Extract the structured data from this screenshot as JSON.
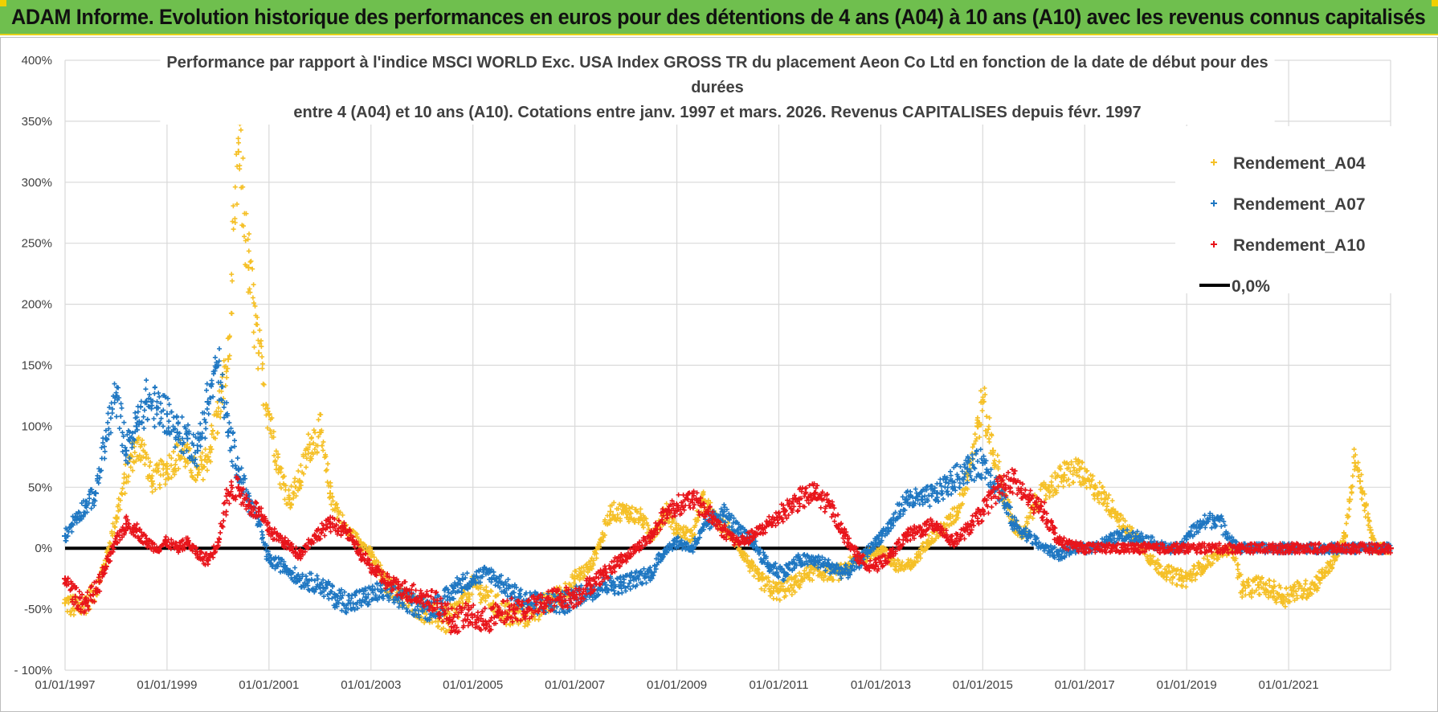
{
  "banner": {
    "title": "ADAM Informe. Evolution historique des performances en euros pour des détentions de 4 ans (A04) à 10 ans (A10) avec les revenus connus capitalisés"
  },
  "chart_data": {
    "type": "scatter",
    "title_lines": [
      "Performance par rapport à l'indice MSCI WORLD Exc. USA Index GROSS TR  du placement Aeon Co Ltd en fonction de la date de début pour des",
      "durées",
      "entre 4 (A04) et 10 ans (A10).  Cotations entre janv. 1997 et mars. 2026.  Revenus CAPITALISES depuis févr. 1997"
    ],
    "xlabel": "",
    "ylabel": "",
    "xlim": [
      1997.0,
      2023.0
    ],
    "ylim": [
      -100,
      400
    ],
    "y_ticks": [
      -100,
      -50,
      0,
      50,
      100,
      150,
      200,
      250,
      300,
      350,
      400
    ],
    "y_tick_labels": [
      "- 100%",
      "-50%",
      "0%",
      "50%",
      "100%",
      "150%",
      "200%",
      "250%",
      "300%",
      "350%",
      "400%"
    ],
    "x_ticks": [
      1997,
      1999,
      2001,
      2003,
      2005,
      2007,
      2009,
      2011,
      2013,
      2015,
      2017,
      2019,
      2021
    ],
    "x_tick_labels": [
      "01/01/1997",
      "01/01/1999",
      "01/01/2001",
      "01/01/2003",
      "01/01/2005",
      "01/01/2007",
      "01/01/2009",
      "01/01/2011",
      "01/01/2013",
      "01/01/2015",
      "01/01/2017",
      "01/01/2019",
      "01/01/2021"
    ],
    "grid": true,
    "legend_position": "top-right",
    "marker": "+",
    "series": [
      {
        "name": "Rendement_A04",
        "color": "#f5c027",
        "x": [
          1997.0,
          1997.3,
          1997.6,
          1997.8,
          1998.0,
          1998.3,
          1998.5,
          1998.7,
          1999.0,
          1999.3,
          1999.6,
          1999.8,
          2000.0,
          2000.2,
          2000.4,
          2000.6,
          2000.8,
          2001.0,
          2001.2,
          2001.4,
          2001.6,
          2001.8,
          2002.0,
          2002.2,
          2002.5,
          2002.8,
          2003.0,
          2003.3,
          2003.6,
          2004.0,
          2004.5,
          2004.8,
          2005.0,
          2005.4,
          2005.7,
          2006.0,
          2006.5,
          2006.8,
          2007.0,
          2007.3,
          2007.5,
          2007.7,
          2008.0,
          2008.3,
          2008.5,
          2008.8,
          2009.0,
          2009.3,
          2009.5,
          2009.8,
          2010.0,
          2010.3,
          2010.6,
          2010.9,
          2011.0,
          2011.3,
          2011.6,
          2011.9,
          2012.2,
          2012.5,
          2012.8,
          2013.0,
          2013.3,
          2013.6,
          2013.9,
          2014.2,
          2014.5,
          2014.7,
          2014.9,
          2015.0,
          2015.2,
          2015.4,
          2015.6,
          2015.8,
          2016.0,
          2016.3,
          2016.6,
          2016.9,
          2017.0,
          2017.2,
          2017.4,
          2017.6,
          2017.8,
          2018.0,
          2018.3,
          2018.6,
          2018.9,
          2019.0,
          2019.3,
          2019.6,
          2019.9,
          2020.1,
          2020.4,
          2020.7,
          2020.9,
          2021.1,
          2021.3,
          2021.5,
          2021.7,
          2021.9,
          2022.0,
          2022.1,
          2022.2,
          2022.3,
          2022.4,
          2022.5,
          2022.6,
          2022.7,
          2022.8,
          2022.9,
          2023.0
        ],
        "y": [
          -45,
          -50,
          -35,
          -10,
          25,
          75,
          85,
          55,
          65,
          80,
          60,
          75,
          110,
          155,
          325,
          230,
          160,
          110,
          65,
          40,
          55,
          85,
          95,
          45,
          15,
          5,
          -5,
          -30,
          -40,
          -50,
          -60,
          -45,
          -30,
          -45,
          -55,
          -55,
          -45,
          -35,
          -25,
          -15,
          5,
          30,
          30,
          25,
          10,
          30,
          15,
          10,
          40,
          20,
          15,
          -5,
          -25,
          -35,
          -35,
          -30,
          -20,
          -20,
          -20,
          -10,
          -5,
          0,
          -15,
          -15,
          5,
          15,
          30,
          60,
          100,
          120,
          80,
          45,
          20,
          10,
          35,
          50,
          60,
          65,
          55,
          50,
          40,
          30,
          15,
          10,
          -10,
          -20,
          -25,
          -25,
          -15,
          -5,
          0,
          -35,
          -30,
          -35,
          -40,
          -35,
          -35,
          -30,
          -20,
          -10,
          0,
          10,
          40,
          70,
          55,
          35,
          15,
          0,
          0,
          0,
          0
        ]
      },
      {
        "name": "Rendement_A07",
        "color": "#1f77c2",
        "x": [
          1997.0,
          1997.2,
          1997.4,
          1997.6,
          1997.8,
          1998.0,
          1998.2,
          1998.4,
          1998.6,
          1998.8,
          1999.0,
          1999.2,
          1999.4,
          1999.6,
          1999.8,
          2000.0,
          2000.2,
          2000.4,
          2000.6,
          2000.8,
          2001.0,
          2001.3,
          2001.6,
          2002.0,
          2002.3,
          2002.6,
          2002.9,
          2003.2,
          2003.5,
          2003.8,
          2004.1,
          2004.4,
          2004.7,
          2005.0,
          2005.3,
          2005.6,
          2005.9,
          2006.2,
          2006.5,
          2006.8,
          2007.0,
          2007.3,
          2007.6,
          2007.9,
          2008.2,
          2008.5,
          2008.8,
          2009.0,
          2009.3,
          2009.6,
          2009.9,
          2010.2,
          2010.5,
          2010.8,
          2011.1,
          2011.4,
          2011.7,
          2012.0,
          2012.3,
          2012.6,
          2012.9,
          2013.2,
          2013.5,
          2013.8,
          2014.1,
          2014.4,
          2014.7,
          2015.0,
          2015.3,
          2015.6,
          2015.9,
          2016.2,
          2016.5,
          2016.8,
          2017.1,
          2017.4,
          2017.7,
          2018.0,
          2018.3,
          2018.6,
          2018.9,
          2019.0,
          2019.3,
          2019.6,
          2019.9,
          2020.0,
          2021.0,
          2022.0,
          2023.0
        ],
        "y": [
          10,
          25,
          35,
          45,
          90,
          125,
          80,
          100,
          120,
          115,
          110,
          95,
          90,
          80,
          120,
          150,
          95,
          65,
          40,
          20,
          -10,
          -15,
          -25,
          -30,
          -40,
          -45,
          -40,
          -35,
          -40,
          -45,
          -50,
          -45,
          -30,
          -25,
          -20,
          -30,
          -40,
          -45,
          -45,
          -45,
          -40,
          -35,
          -30,
          -30,
          -25,
          -20,
          0,
          5,
          0,
          20,
          30,
          15,
          5,
          -15,
          -20,
          -10,
          -10,
          -15,
          -20,
          -10,
          5,
          20,
          40,
          40,
          45,
          55,
          65,
          70,
          50,
          20,
          10,
          0,
          -5,
          0,
          0,
          5,
          10,
          10,
          5,
          0,
          0,
          10,
          20,
          25,
          5,
          0,
          0,
          0,
          0
        ]
      },
      {
        "name": "Rendement_A10",
        "color": "#e8151b",
        "x": [
          1997.0,
          1997.2,
          1997.4,
          1997.6,
          1997.8,
          1998.0,
          1998.2,
          1998.4,
          1998.6,
          1998.8,
          1999.0,
          1999.2,
          1999.4,
          1999.6,
          1999.8,
          2000.0,
          2000.2,
          2000.4,
          2000.6,
          2000.8,
          2001.0,
          2001.3,
          2001.6,
          2001.9,
          2002.2,
          2002.5,
          2002.8,
          2003.1,
          2003.4,
          2003.7,
          2004.0,
          2004.3,
          2004.6,
          2004.9,
          2005.2,
          2005.5,
          2005.8,
          2006.1,
          2006.4,
          2006.7,
          2007.0,
          2007.3,
          2007.6,
          2007.9,
          2008.2,
          2008.5,
          2008.8,
          2009.0,
          2009.3,
          2009.6,
          2009.9,
          2010.2,
          2010.5,
          2010.8,
          2011.1,
          2011.4,
          2011.7,
          2012.0,
          2012.3,
          2012.6,
          2012.9,
          2013.2,
          2013.5,
          2013.8,
          2014.1,
          2014.4,
          2014.7,
          2015.0,
          2015.3,
          2015.6,
          2015.9,
          2016.2,
          2016.5,
          2017.0,
          2018.0,
          2019.0,
          2020.0,
          2021.0,
          2022.0,
          2023.0
        ],
        "y": [
          -25,
          -40,
          -45,
          -35,
          -15,
          5,
          20,
          15,
          5,
          0,
          5,
          0,
          5,
          -5,
          -10,
          5,
          45,
          50,
          35,
          30,
          15,
          5,
          -5,
          10,
          20,
          15,
          -5,
          -20,
          -30,
          -35,
          -40,
          -45,
          -60,
          -55,
          -60,
          -55,
          -50,
          -50,
          -45,
          -40,
          -40,
          -30,
          -20,
          -10,
          0,
          10,
          30,
          35,
          40,
          30,
          15,
          5,
          10,
          20,
          30,
          40,
          45,
          35,
          10,
          -10,
          -15,
          -5,
          10,
          15,
          20,
          5,
          15,
          30,
          50,
          55,
          40,
          30,
          5,
          0,
          0,
          0,
          0,
          0,
          0,
          0
        ]
      },
      {
        "name": "0,0%",
        "color": "#000000",
        "type": "line",
        "x": [
          1997.0,
          2007.0,
          2016.0
        ],
        "y": [
          0,
          0,
          0
        ]
      }
    ]
  }
}
